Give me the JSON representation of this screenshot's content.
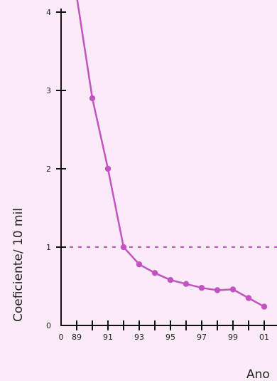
{
  "chart_data": {
    "type": "line",
    "xlabel": "Ano",
    "ylabel": "Coeficiente/ 10 mil",
    "xlim": [
      1988,
      2001.5
    ],
    "ylim": [
      0,
      4.4
    ],
    "x_ticks": [
      {
        "value": 1988,
        "label": "0"
      },
      {
        "value": 1989,
        "label": "89"
      },
      {
        "value": 1990,
        "label": ""
      },
      {
        "value": 1991,
        "label": "91"
      },
      {
        "value": 1992,
        "label": ""
      },
      {
        "value": 1993,
        "label": "93"
      },
      {
        "value": 1994,
        "label": ""
      },
      {
        "value": 1995,
        "label": "95"
      },
      {
        "value": 1996,
        "label": ""
      },
      {
        "value": 1997,
        "label": "97"
      },
      {
        "value": 1998,
        "label": ""
      },
      {
        "value": 1999,
        "label": "99"
      },
      {
        "value": 2000,
        "label": ""
      },
      {
        "value": 2001,
        "label": "01"
      }
    ],
    "y_ticks": [
      {
        "value": 0,
        "label": "0"
      },
      {
        "value": 1,
        "label": "1"
      },
      {
        "value": 2,
        "label": "2"
      },
      {
        "value": 3,
        "label": "3"
      },
      {
        "value": 4,
        "label": "4"
      }
    ],
    "reference_line": {
      "y": 1,
      "style": "dashed"
    },
    "series": [
      {
        "x": [
          1989,
          1990,
          1991,
          1992,
          1993,
          1994,
          1995,
          1996,
          1997,
          1998,
          1999,
          2000,
          2001
        ],
        "y": [
          4.2,
          2.9,
          2.0,
          1.0,
          0.78,
          0.67,
          0.58,
          0.53,
          0.48,
          0.45,
          0.46,
          0.35,
          0.24
        ]
      }
    ],
    "colors": {
      "background": "#fbeaf7",
      "line": "#c254c1",
      "reference": "#c254c1",
      "axis": "#111111"
    }
  }
}
